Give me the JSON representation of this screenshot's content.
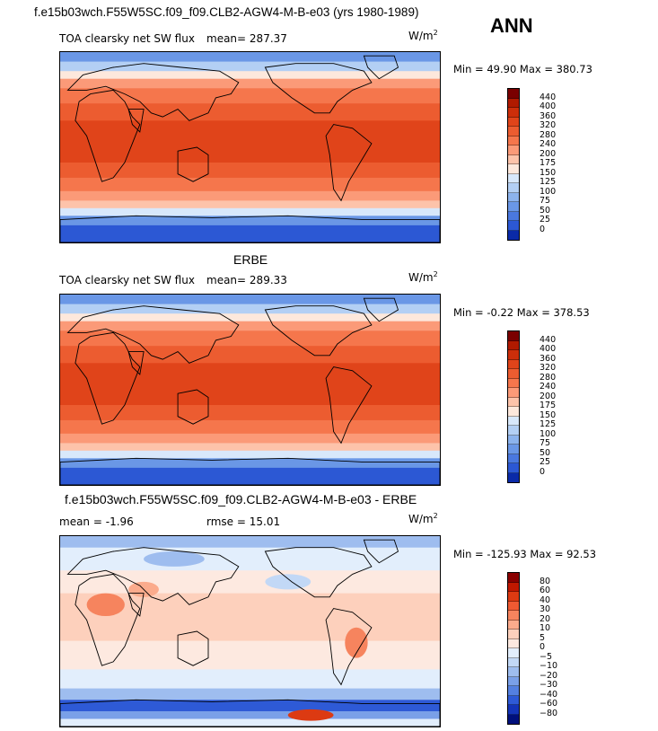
{
  "header": {
    "title": "f.e15b03wch.F55W5SC.f09_f09.CLB2-AGW4-M-B-e03 (yrs 1980-1989)",
    "season": "ANN"
  },
  "panels": [
    {
      "title": "",
      "field": "TOA clearsky net SW flux",
      "mean_label": "mean=",
      "mean": "287.37",
      "units_base": "W/m",
      "units_exp": "2",
      "minmax": "Min =  49.90 Max = 380.73",
      "levels": [
        "440",
        "400",
        "360",
        "320",
        "280",
        "240",
        "200",
        "175",
        "150",
        "125",
        "100",
        "75",
        "50",
        "25",
        "0"
      ],
      "colors": [
        "#7a0000",
        "#b01a00",
        "#cc2e0a",
        "#e0441a",
        "#ec5c30",
        "#f5764c",
        "#fb9a78",
        "#fdc3aa",
        "#fde8dc",
        "#d8e8fb",
        "#b3cff4",
        "#8cb3ed",
        "#6a97e6",
        "#4a78df",
        "#2c58d4",
        "#0a2aa8"
      ]
    },
    {
      "title": "ERBE",
      "field": "TOA clearsky net SW flux",
      "mean_label": "mean=",
      "mean": "289.33",
      "units_base": "W/m",
      "units_exp": "2",
      "minmax": "Min =  -0.22 Max = 378.53",
      "levels": [
        "440",
        "400",
        "360",
        "320",
        "280",
        "240",
        "200",
        "175",
        "150",
        "125",
        "100",
        "75",
        "50",
        "25",
        "0"
      ],
      "colors": [
        "#7a0000",
        "#b01a00",
        "#cc2e0a",
        "#e0441a",
        "#ec5c30",
        "#f5764c",
        "#fb9a78",
        "#fdc3aa",
        "#fde8dc",
        "#d8e8fb",
        "#b3cff4",
        "#8cb3ed",
        "#6a97e6",
        "#4a78df",
        "#2c58d4",
        "#0a2aa8"
      ]
    },
    {
      "title": "f.e15b03wch.F55W5SC.f09_f09.CLB2-AGW4-M-B-e03 - ERBE",
      "mean_label": "mean =",
      "mean": "-1.96",
      "rmse_label": "rmse =",
      "rmse": "15.01",
      "units_base": "W/m",
      "units_exp": "2",
      "minmax": "Min = -125.93 Max =  92.53",
      "levels": [
        "80",
        "60",
        "40",
        "30",
        "20",
        "10",
        "5",
        "0",
        "−5",
        "−10",
        "−20",
        "−30",
        "−40",
        "−60",
        "−80"
      ],
      "colors": [
        "#8a0000",
        "#c01800",
        "#dc3a12",
        "#ee5a32",
        "#f6845e",
        "#fbab8c",
        "#fdd0bc",
        "#fde9e0",
        "#e2eefc",
        "#c2d8f6",
        "#9ebdef",
        "#7aa0e8",
        "#5480e0",
        "#2e5ad6",
        "#1434b8",
        "#00107c"
      ]
    }
  ],
  "chart_data": [
    {
      "type": "heatmap",
      "title": "TOA clearsky net SW flux",
      "units": "W/m2",
      "mean": 287.37,
      "min": 49.9,
      "max": 380.73,
      "contour_levels": [
        0,
        25,
        50,
        75,
        100,
        125,
        150,
        175,
        200,
        240,
        280,
        320,
        360,
        400,
        440
      ]
    },
    {
      "type": "heatmap",
      "title": "ERBE TOA clearsky net SW flux",
      "units": "W/m2",
      "mean": 289.33,
      "min": -0.22,
      "max": 378.53,
      "contour_levels": [
        0,
        25,
        50,
        75,
        100,
        125,
        150,
        175,
        200,
        240,
        280,
        320,
        360,
        400,
        440
      ]
    },
    {
      "type": "heatmap",
      "title": "f.e15b03wch.F55W5SC.f09_f09.CLB2-AGW4-M-B-e03 - ERBE",
      "units": "W/m2",
      "mean": -1.96,
      "rmse": 15.01,
      "min": -125.93,
      "max": 92.53,
      "contour_levels": [
        -80,
        -60,
        -40,
        -30,
        -20,
        -10,
        -5,
        0,
        5,
        10,
        20,
        30,
        40,
        60,
        80
      ]
    }
  ]
}
